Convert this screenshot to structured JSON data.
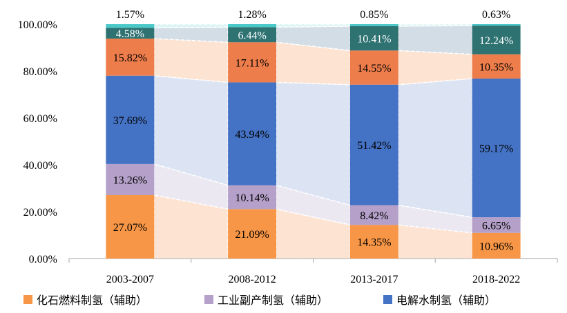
{
  "chart_data": {
    "type": "bar",
    "stacked": true,
    "percent": true,
    "title": "",
    "xlabel": "",
    "ylabel": "",
    "categories": [
      "2003-2007",
      "2008-2012",
      "2013-2017",
      "2018-2022"
    ],
    "ylim": [
      0,
      100
    ],
    "y_ticks": [
      "0.00%",
      "20.00%",
      "40.00%",
      "60.00%",
      "80.00%",
      "100.00%"
    ],
    "grid": false,
    "legend_position": "bottom",
    "series": [
      {
        "name": "化石燃料制氢（辅助）",
        "color": "#F79646",
        "values": [
          27.07,
          21.09,
          14.35,
          10.96
        ],
        "labels": [
          "27.07%",
          "21.09%",
          "14.35%",
          "10.96%"
        ]
      },
      {
        "name": "工业副产制氢（辅助）",
        "color": "#B4A0C8",
        "values": [
          13.26,
          10.14,
          8.42,
          6.65
        ],
        "labels": [
          "13.26%",
          "10.14%",
          "8.42%",
          "6.65%"
        ]
      },
      {
        "name": "电解水制氢（辅助）",
        "color": "#4472C4",
        "values": [
          37.69,
          43.94,
          51.42,
          59.17
        ],
        "labels": [
          "37.69%",
          "43.94%",
          "51.42%",
          "59.17%"
        ]
      },
      {
        "name": "",
        "color": "#ED7D4B",
        "values": [
          15.82,
          17.11,
          14.55,
          10.35
        ],
        "labels": [
          "15.82%",
          "17.11%",
          "14.55%",
          "10.35%"
        ]
      },
      {
        "name": "",
        "color": "#2E7272",
        "values": [
          4.58,
          6.44,
          10.41,
          12.24
        ],
        "labels": [
          "4.58%",
          "6.44%",
          "10.41%",
          "12.24%"
        ]
      },
      {
        "name": "",
        "color": "#4BC8C8",
        "values": [
          1.57,
          1.28,
          0.85,
          0.63
        ],
        "labels": [
          "1.57%",
          "1.28%",
          "0.85%",
          "0.63%"
        ]
      }
    ],
    "label_colors": [
      "#000000",
      "#000000",
      "#000000",
      "#000000",
      "#ffffff",
      "#000000"
    ],
    "connector_colors": [
      "#FDE3D1",
      "#ECE8F2",
      "#DCE4F4",
      "#FDE3D1",
      "#D3DDE6",
      "#DDF5F5"
    ]
  }
}
